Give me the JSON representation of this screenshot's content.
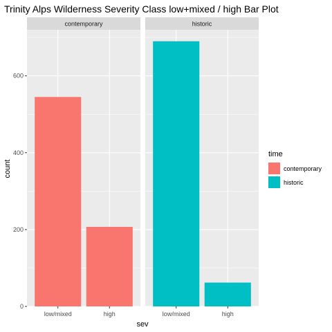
{
  "chart_data": {
    "type": "bar",
    "title": "Trinity Alps Wilderness Severity Class low+mixed / high Bar Plot",
    "xlabel": "sev",
    "ylabel": "count",
    "categories": [
      "low/mixed",
      "high"
    ],
    "yticks": [
      0,
      200,
      400,
      600
    ],
    "ylim": [
      0,
      720
    ],
    "grid": true,
    "legend": {
      "title": "time",
      "placement": "right",
      "entries": [
        {
          "label": "contemporary",
          "color": "#F8766D"
        },
        {
          "label": "historic",
          "color": "#00BFC4"
        }
      ]
    },
    "facets": [
      {
        "label": "contemporary",
        "color": "#F8766D",
        "values": [
          545,
          207
        ]
      },
      {
        "label": "historic",
        "color": "#00BFC4",
        "values": [
          690,
          62
        ]
      }
    ]
  }
}
